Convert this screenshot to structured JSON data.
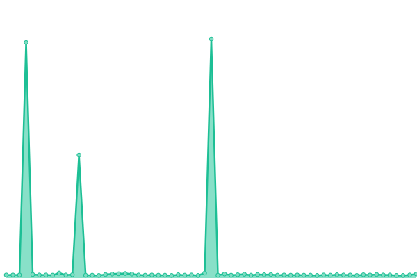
{
  "chart_data": {
    "type": "area",
    "title": "",
    "xlabel": "",
    "ylabel": "",
    "grid": false,
    "legend": "none",
    "x": [
      0,
      1,
      2,
      3,
      4,
      5,
      6,
      7,
      8,
      9,
      10,
      11,
      12,
      13,
      14,
      15,
      16,
      17,
      18,
      19,
      20,
      21,
      22,
      23,
      24,
      25,
      26,
      27,
      28,
      29,
      30,
      31,
      32,
      33,
      34,
      35,
      36,
      37,
      38,
      39,
      40,
      41,
      42,
      43,
      44,
      45,
      46,
      47,
      48,
      49,
      50,
      51,
      52,
      53,
      54,
      55,
      56,
      57,
      58,
      59,
      60,
      61,
      62
    ],
    "ylim": [
      0,
      1
    ],
    "series": [
      {
        "values": [
          0.004,
          0.004,
          0.004,
          0.985,
          0.006,
          0.004,
          0.004,
          0.003,
          0.012,
          0.004,
          0.005,
          0.51,
          0.003,
          0.003,
          0.002,
          0.006,
          0.008,
          0.009,
          0.01,
          0.008,
          0.004,
          0.003,
          0.004,
          0.003,
          0.003,
          0.002,
          0.005,
          0.003,
          0.004,
          0.002,
          0.012,
          1.0,
          0.003,
          0.008,
          0.003,
          0.005,
          0.007,
          0.003,
          0.006,
          0.005,
          0.006,
          0.003,
          0.004,
          0.003,
          0.004,
          0.003,
          0.003,
          0.002,
          0.004,
          0.003,
          0.005,
          0.004,
          0.004,
          0.002,
          0.005,
          0.004,
          0.006,
          0.004,
          0.004,
          0.002,
          0.002,
          0.004,
          0.008
        ]
      }
    ],
    "colors": {
      "line": "#1dbf95",
      "fill": "#88e0c8",
      "marker_fill": "#7fdcc2",
      "marker_stroke": "#1dbf95"
    }
  }
}
